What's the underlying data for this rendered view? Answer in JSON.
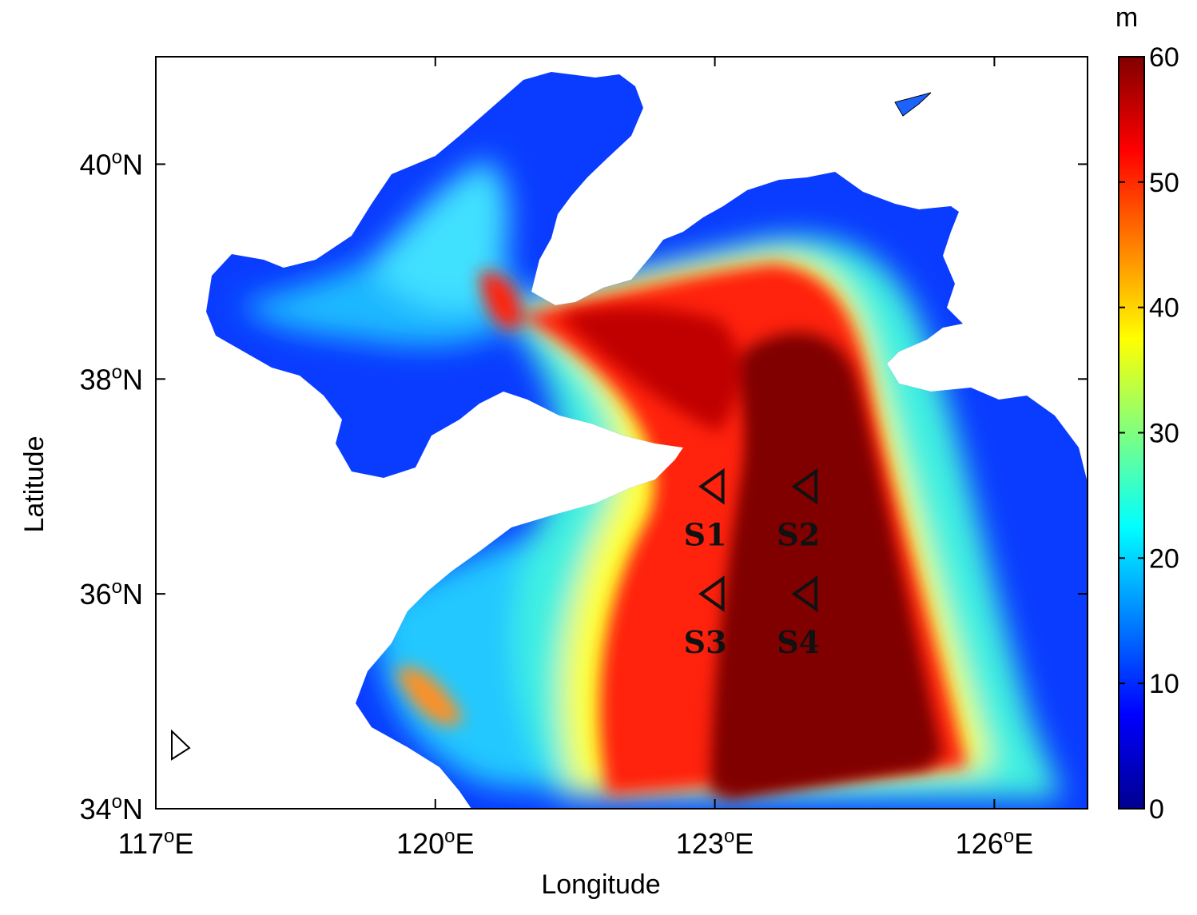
{
  "chart_data": {
    "type": "heatmap",
    "xlabel": "Longitude",
    "ylabel": "Latitude",
    "xlim": [
      117,
      127
    ],
    "ylim": [
      34,
      41
    ],
    "x_ticks": [
      117,
      120,
      123,
      126
    ],
    "y_ticks": [
      34,
      36,
      38,
      40
    ],
    "x_tick_labels": [
      "117",
      "120",
      "123",
      "126"
    ],
    "y_tick_labels": [
      "34",
      "36",
      "38",
      "40"
    ],
    "x_suffix": "E",
    "y_suffix": "N",
    "degree_symbol": "o",
    "colorbar": {
      "unit": "m",
      "min": 0,
      "max": 60,
      "ticks": [
        0,
        10,
        20,
        30,
        40,
        50,
        60
      ],
      "tick_labels": [
        "0",
        "10",
        "20",
        "30",
        "40",
        "50",
        "60"
      ],
      "colormap": "jet"
    },
    "stations": [
      {
        "name": "S1",
        "lon": 123.0,
        "lat": 37.0
      },
      {
        "name": "S2",
        "lon": 124.0,
        "lat": 37.0
      },
      {
        "name": "S3",
        "lon": 123.0,
        "lat": 36.0
      },
      {
        "name": "S4",
        "lon": 124.0,
        "lat": 36.0
      }
    ],
    "colors": {
      "land": "#ffffff",
      "deep": "#800000",
      "shallow": "#0000a0"
    }
  }
}
